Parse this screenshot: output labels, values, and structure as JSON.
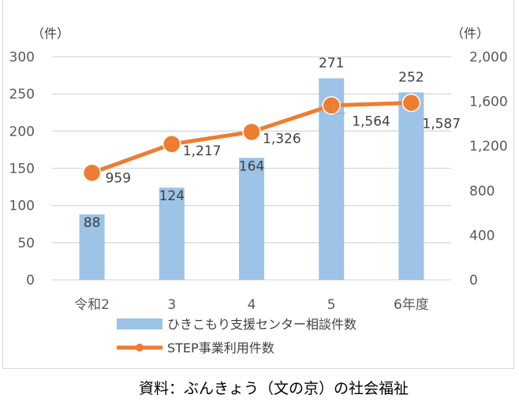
{
  "chart_data": {
    "type": "bar+line",
    "categories": [
      "令和2",
      "3",
      "4",
      "5",
      "6年度"
    ],
    "series": [
      {
        "name": "ひきこもり支援センター相談件数",
        "type": "bar",
        "axis": "left",
        "values": [
          88,
          124,
          164,
          271,
          252
        ],
        "color": "#9dc3e6"
      },
      {
        "name": "STEP事業利用件数",
        "type": "line",
        "axis": "right",
        "values": [
          959,
          1217,
          1326,
          1564,
          1587
        ],
        "color": "#ed7d31"
      }
    ],
    "left_axis": {
      "unit": "（件）",
      "ylim": [
        0,
        300
      ],
      "ticks": [
        0,
        50,
        100,
        150,
        200,
        250,
        300
      ],
      "tick_labels": [
        "0",
        "50",
        "100",
        "150",
        "200",
        "250",
        "300"
      ]
    },
    "right_axis": {
      "unit": "（件）",
      "ylim": [
        0,
        2000
      ],
      "ticks": [
        0,
        400,
        800,
        1200,
        1600,
        2000
      ],
      "tick_labels": [
        "0",
        "400",
        "800",
        "1,200",
        "1,600",
        "2,000"
      ]
    },
    "bar_labels": [
      "88",
      "124",
      "164",
      "271",
      "252"
    ],
    "line_labels": [
      "959",
      "1,217",
      "1,326",
      "1,564",
      "1,587"
    ],
    "grid": true,
    "legend": "bottom"
  },
  "caption": "資料：ぶんきょう（文の京）の社会福祉"
}
